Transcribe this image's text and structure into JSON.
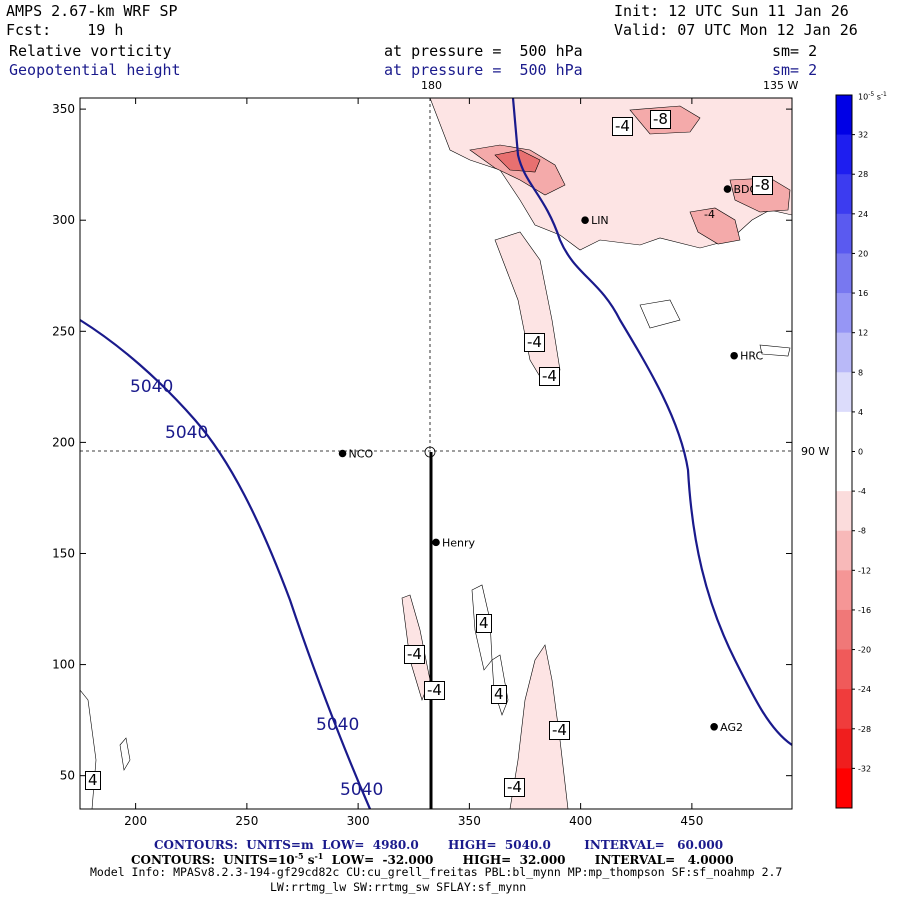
{
  "header": {
    "model": "AMPS 2.67-km WRF SP",
    "fcst": "Fcst:    19 h",
    "init": "Init: 12 UTC Sun 11 Jan 26",
    "valid": "Valid: 07 UTC Mon 12 Jan 26",
    "field1": "Relative vorticity",
    "field2": "Geopotential height",
    "pressure1": "at pressure =  500 hPa",
    "pressure2": "at pressure =  500 hPa",
    "sm1": "sm= 2",
    "sm2": "sm= 2",
    "top_lon_180": "180",
    "top_lon_135w": "135 W",
    "right_lat_90w": "90 W"
  },
  "footer": {
    "contours1": "CONTOURS:  UNITS=m  LOW=  4980.0       HIGH=  5040.0        INTERVAL=   60.000",
    "contours2_a": "CONTOURS:  UNITS=10",
    "contours2_exp": "-5",
    "contours2_b": " s",
    "contours2_exp2": "-1",
    "contours2_c": "  LOW=  -32.000       HIGH=  32.000       INTERVAL=   4.0000",
    "model_info": "Model Info: MPASv8.2.3-194-gf29cd82c CU:cu_grell_freitas PBL:bl_mynn MP:mp_thompson SF:sf_noahmp 2.7",
    "model_info2": "LW:rrtmg_lw SW:rrtmg_sw SFLAY:sf_mynn"
  },
  "colors": {
    "height_contour": "#1a1a8c",
    "neg_fill_light": "#fde4e4",
    "neg_fill_med": "#f4aaaa",
    "neg_fill_dark": "#e87070"
  },
  "chart_data": {
    "type": "contour-map",
    "xlim": [
      175,
      495
    ],
    "ylim": [
      35,
      355
    ],
    "x_ticks": [
      200,
      250,
      300,
      350,
      400,
      450
    ],
    "y_ticks": [
      50,
      100,
      150,
      200,
      250,
      300,
      350
    ],
    "height_contour_labels": [
      "5040",
      "5040",
      "5040",
      "5040"
    ],
    "vorticity_labels": [
      "-4",
      "-8",
      "-8",
      "-4",
      "-4",
      "-4",
      "4",
      "-4",
      "-4",
      "4",
      "-4",
      "-4",
      "4"
    ],
    "stations": [
      {
        "name": "NCO",
        "x": 293,
        "y": 195
      },
      {
        "name": "Henry",
        "x": 335,
        "y": 155
      },
      {
        "name": "LIN",
        "x": 402,
        "y": 300
      },
      {
        "name": "BDG",
        "x": 466,
        "y": 314
      },
      {
        "name": "HRC",
        "x": 469,
        "y": 239
      },
      {
        "name": "AG2",
        "x": 460,
        "y": 72
      }
    ],
    "colorbar": {
      "units_a": "10",
      "units_exp": "-5",
      "units_b": " s",
      "units_exp2": "-1",
      "ticks": [
        32,
        28,
        24,
        20,
        16,
        12,
        8,
        4,
        0,
        -4,
        -8,
        -12,
        -16,
        -20,
        -24,
        -28,
        -32
      ],
      "colors": [
        "#0000e6",
        "#1e1ef0",
        "#3c3cf0",
        "#5a5af0",
        "#7878f0",
        "#9696f5",
        "#b9b9f8",
        "#dcdcfb",
        "#ffffff",
        "#ffffff",
        "#fbdcdc",
        "#f8b9b9",
        "#f59696",
        "#f07878",
        "#f05a5a",
        "#f03c3c",
        "#f01e1e",
        "#ff0000"
      ]
    }
  }
}
